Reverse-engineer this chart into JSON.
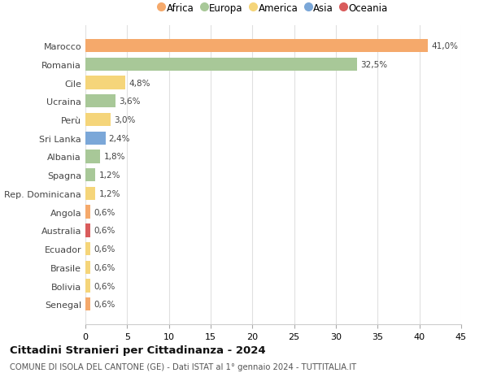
{
  "title": "Cittadini Stranieri per Cittadinanza - 2024",
  "subtitle": "COMUNE DI ISOLA DEL CANTONE (GE) - Dati ISTAT al 1° gennaio 2024 - TUTTITALIA.IT",
  "countries": [
    "Marocco",
    "Romania",
    "Cile",
    "Ucraina",
    "Perù",
    "Sri Lanka",
    "Albania",
    "Spagna",
    "Rep. Dominicana",
    "Angola",
    "Australia",
    "Ecuador",
    "Brasile",
    "Bolivia",
    "Senegal"
  ],
  "values": [
    41.0,
    32.5,
    4.8,
    3.6,
    3.0,
    2.4,
    1.8,
    1.2,
    1.2,
    0.6,
    0.6,
    0.6,
    0.6,
    0.6,
    0.6
  ],
  "labels": [
    "41,0%",
    "32,5%",
    "4,8%",
    "3,6%",
    "3,0%",
    "2,4%",
    "1,8%",
    "1,2%",
    "1,2%",
    "0,6%",
    "0,6%",
    "0,6%",
    "0,6%",
    "0,6%",
    "0,6%"
  ],
  "continents": [
    "Africa",
    "Europa",
    "America",
    "Europa",
    "America",
    "Asia",
    "Europa",
    "Europa",
    "America",
    "Africa",
    "Oceania",
    "America",
    "America",
    "America",
    "Africa"
  ],
  "continent_colors": {
    "Africa": "#F5A96B",
    "Europa": "#A8C898",
    "America": "#F5D57A",
    "Asia": "#7BA7D8",
    "Oceania": "#D95C5C"
  },
  "legend_order": [
    "Africa",
    "Europa",
    "America",
    "Asia",
    "Oceania"
  ],
  "xlim": [
    0,
    45
  ],
  "xticks": [
    0,
    5,
    10,
    15,
    20,
    25,
    30,
    35,
    40,
    45
  ],
  "background_color": "#ffffff",
  "grid_color": "#e0e0e0",
  "bar_height": 0.72
}
